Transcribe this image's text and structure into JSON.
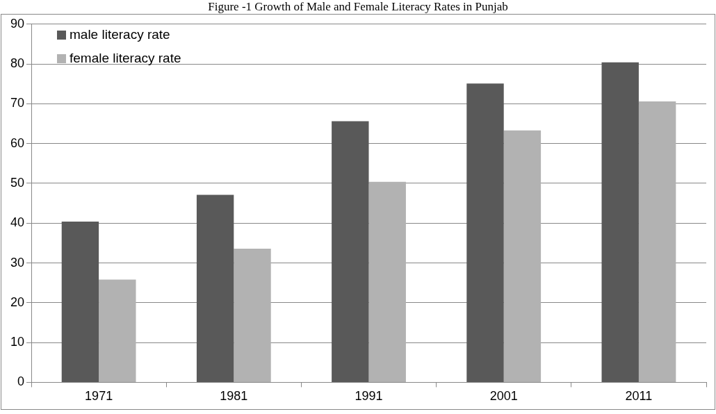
{
  "chart_data": {
    "type": "bar",
    "title": "Figure -1 Growth of Male and Female Literacy Rates in Punjab",
    "categories": [
      "1971",
      "1981",
      "1991",
      "2001",
      "2011"
    ],
    "series": [
      {
        "name": "male literacy rate",
        "color": "#595959",
        "values": [
          40.4,
          47.1,
          65.6,
          75.1,
          80.4
        ]
      },
      {
        "name": "female literacy rate",
        "color": "#b2b2b2",
        "values": [
          25.8,
          33.6,
          50.4,
          63.3,
          70.6
        ]
      }
    ],
    "ylim": [
      0,
      90
    ],
    "yticks": [
      0,
      10,
      20,
      30,
      40,
      50,
      60,
      70,
      80,
      90
    ],
    "grid": "y",
    "legend": "top left"
  }
}
